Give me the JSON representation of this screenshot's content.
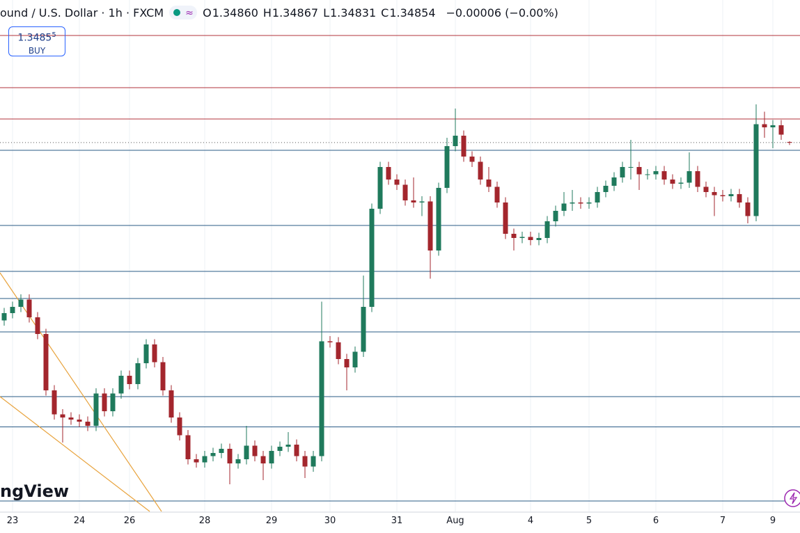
{
  "header": {
    "symbol": "ound / U.S. Dollar · 1h · FXCM",
    "ohlc": [
      {
        "label": "O",
        "value": "1.34860"
      },
      {
        "label": "H",
        "value": "1.34867"
      },
      {
        "label": "L",
        "value": "1.34831"
      },
      {
        "label": "C",
        "value": "1.34854"
      }
    ],
    "change": "−0.00006 (−0.00%)"
  },
  "buy_box": {
    "price": "1.3485",
    "pip": "5",
    "label": "BUY"
  },
  "watermark": "ngView",
  "chart_data": {
    "type": "candlestick",
    "up_color": "#1f7a5c",
    "down_color": "#a3262d",
    "categories": [
      null,
      "23",
      null,
      null,
      null,
      null,
      null,
      null,
      null,
      "24",
      null,
      null,
      null,
      null,
      null,
      "26",
      null,
      null,
      null,
      null,
      null,
      null,
      null,
      null,
      "28",
      null,
      null,
      null,
      null,
      null,
      null,
      null,
      "29",
      null,
      null,
      null,
      null,
      null,
      null,
      "30",
      null,
      null,
      null,
      null,
      null,
      null,
      null,
      "31",
      null,
      null,
      null,
      null,
      null,
      null,
      "Aug",
      null,
      null,
      null,
      null,
      null,
      null,
      null,
      null,
      "4",
      null,
      null,
      null,
      null,
      null,
      null,
      "5",
      null,
      null,
      null,
      null,
      null,
      null,
      null,
      "6",
      null,
      null,
      null,
      null,
      null,
      null,
      null,
      "7",
      null,
      null,
      null,
      null,
      null,
      "9",
      null,
      null
    ],
    "open": [
      1.3315,
      1.3322,
      1.3328,
      1.3335,
      1.3318,
      1.3302,
      1.3248,
      1.3225,
      1.3222,
      1.322,
      1.3218,
      1.3214,
      1.3245,
      1.3228,
      1.3245,
      1.3262,
      1.3254,
      1.3274,
      1.3292,
      1.3275,
      1.3248,
      1.3222,
      1.3205,
      1.3182,
      1.3179,
      1.3185,
      1.3188,
      1.3192,
      1.3178,
      1.3182,
      1.3195,
      1.3185,
      1.3178,
      1.319,
      1.3194,
      1.3196,
      1.3185,
      1.3175,
      1.3185,
      1.3295,
      1.3294,
      1.3278,
      1.327,
      1.3285,
      1.3328,
      1.3422,
      1.3462,
      1.345,
      1.3445,
      1.343,
      1.3428,
      1.3429,
      1.3382,
      1.3442,
      1.3482,
      1.3492,
      1.3472,
      1.3467,
      1.345,
      1.3443,
      1.3428,
      1.3398,
      1.3394,
      1.3395,
      1.3392,
      1.3394,
      1.341,
      1.342,
      1.3427,
      1.3428,
      1.3427,
      1.3428,
      1.3438,
      1.3444,
      1.3452,
      1.3462,
      1.3462,
      1.3455,
      1.3455,
      1.3458,
      1.345,
      1.3446,
      1.3447,
      1.3458,
      1.3443,
      1.3438,
      1.3435,
      1.3434,
      1.3436,
      1.3428,
      1.3415,
      1.3503,
      1.35,
      1.3502,
      1.3486
    ],
    "high": [
      1.3327,
      1.3333,
      1.334,
      1.334,
      1.3323,
      1.3307,
      1.3253,
      1.323,
      1.3227,
      1.3225,
      1.3223,
      1.325,
      1.325,
      1.325,
      1.3267,
      1.3267,
      1.3279,
      1.3297,
      1.3297,
      1.328,
      1.3253,
      1.3227,
      1.321,
      1.3187,
      1.319,
      1.3193,
      1.3197,
      1.3197,
      1.3187,
      1.3214,
      1.32,
      1.319,
      1.3195,
      1.3199,
      1.3208,
      1.3201,
      1.319,
      1.319,
      1.3333,
      1.33,
      1.3299,
      1.3283,
      1.329,
      1.3358,
      1.3427,
      1.3467,
      1.3467,
      1.3455,
      1.345,
      1.3452,
      1.3434,
      1.3434,
      1.3447,
      1.349,
      1.3518,
      1.3497,
      1.3477,
      1.3472,
      1.3462,
      1.3448,
      1.3433,
      1.3403,
      1.34,
      1.34,
      1.3399,
      1.3415,
      1.3425,
      1.3438,
      1.344,
      1.3433,
      1.3433,
      1.3443,
      1.3449,
      1.3457,
      1.3467,
      1.3488,
      1.3467,
      1.346,
      1.3463,
      1.3463,
      1.3455,
      1.3452,
      1.3476,
      1.3463,
      1.3448,
      1.3443,
      1.344,
      1.3441,
      1.3441,
      1.3433,
      1.3522,
      1.3515,
      1.3507,
      1.3507,
      1.34867
    ],
    "low": [
      1.331,
      1.3317,
      1.3323,
      1.3313,
      1.3297,
      1.3243,
      1.322,
      1.3198,
      1.3215,
      1.3213,
      1.3209,
      1.3209,
      1.3223,
      1.3223,
      1.324,
      1.3249,
      1.3249,
      1.3269,
      1.327,
      1.3243,
      1.3217,
      1.32,
      1.3177,
      1.3174,
      1.3174,
      1.318,
      1.3183,
      1.3158,
      1.3173,
      1.3177,
      1.318,
      1.3162,
      1.3173,
      1.3185,
      1.3189,
      1.318,
      1.3164,
      1.317,
      1.318,
      1.3289,
      1.3273,
      1.3248,
      1.3265,
      1.328,
      1.3323,
      1.3417,
      1.3445,
      1.344,
      1.3425,
      1.3423,
      1.3415,
      1.3355,
      1.3377,
      1.3437,
      1.3477,
      1.3467,
      1.3462,
      1.3445,
      1.3438,
      1.3423,
      1.3393,
      1.3382,
      1.3389,
      1.3387,
      1.3387,
      1.3389,
      1.3405,
      1.3415,
      1.342,
      1.3422,
      1.3422,
      1.3423,
      1.3433,
      1.3439,
      1.3447,
      1.345,
      1.344,
      1.345,
      1.345,
      1.3445,
      1.3441,
      1.3441,
      1.3442,
      1.3438,
      1.3433,
      1.3415,
      1.3429,
      1.3429,
      1.3423,
      1.3408,
      1.341,
      1.349,
      1.348,
      1.3488,
      1.34831
    ],
    "close": [
      1.3322,
      1.3328,
      1.3335,
      1.3318,
      1.3302,
      1.3248,
      1.3225,
      1.3222,
      1.322,
      1.3218,
      1.3214,
      1.3245,
      1.3228,
      1.3245,
      1.3262,
      1.3254,
      1.3274,
      1.3292,
      1.3275,
      1.3248,
      1.3222,
      1.3205,
      1.3182,
      1.3179,
      1.3185,
      1.3188,
      1.3192,
      1.3178,
      1.3182,
      1.3195,
      1.3185,
      1.3178,
      1.319,
      1.3194,
      1.3196,
      1.3185,
      1.3175,
      1.3185,
      1.3295,
      1.3294,
      1.3278,
      1.327,
      1.3285,
      1.3328,
      1.3422,
      1.3462,
      1.345,
      1.3445,
      1.343,
      1.3428,
      1.3429,
      1.3382,
      1.3442,
      1.3482,
      1.3492,
      1.3472,
      1.3467,
      1.345,
      1.3443,
      1.3428,
      1.3398,
      1.3394,
      1.3395,
      1.3392,
      1.3394,
      1.341,
      1.342,
      1.3427,
      1.3428,
      1.3427,
      1.3428,
      1.3438,
      1.3444,
      1.3452,
      1.3462,
      1.3462,
      1.3455,
      1.3455,
      1.3458,
      1.345,
      1.3446,
      1.3447,
      1.3458,
      1.3443,
      1.3438,
      1.3435,
      1.3434,
      1.3436,
      1.3428,
      1.3415,
      1.3503,
      1.35,
      1.3502,
      1.3493,
      1.34854
    ],
    "levels": [
      {
        "value": 1.3588,
        "color": "#b2333b"
      },
      {
        "value": 1.3538,
        "color": "#b2333b"
      },
      {
        "value": 1.3508,
        "color": "#b2333b"
      },
      {
        "value": 1.3478,
        "color": "#2a5b86"
      },
      {
        "value": 1.3406,
        "color": "#2a5b86"
      },
      {
        "value": 1.3362,
        "color": "#2a5b86"
      },
      {
        "value": 1.3336,
        "color": "#2a5b86"
      },
      {
        "value": 1.3304,
        "color": "#2a5b86"
      },
      {
        "value": 1.3242,
        "color": "#2a5b86"
      },
      {
        "value": 1.3213,
        "color": "#2a5b86"
      },
      {
        "value": 1.3142,
        "color": "#2a5b86"
      }
    ],
    "ylim": [
      1.3132,
      1.3622
    ],
    "grid": true
  }
}
